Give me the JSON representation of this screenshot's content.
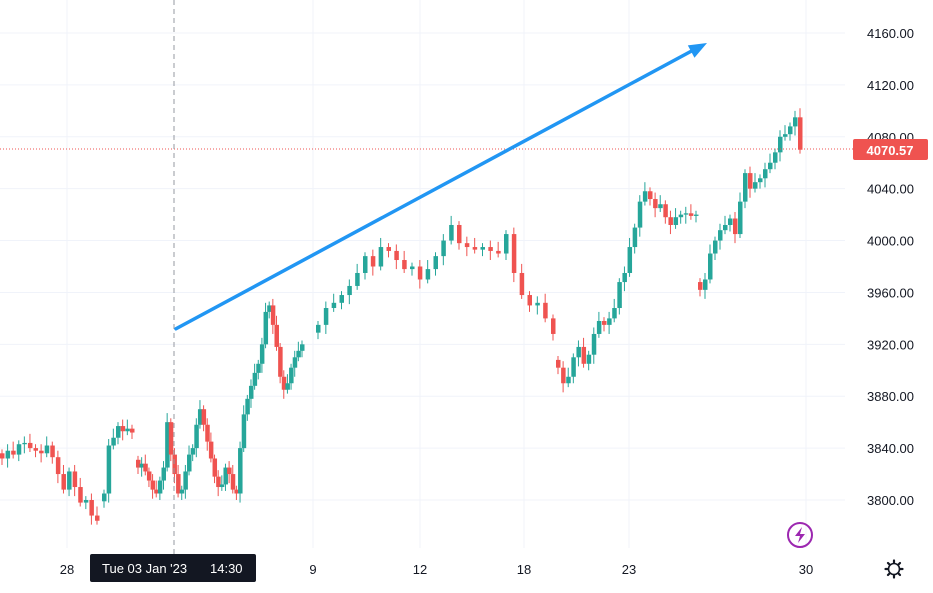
{
  "colors": {
    "up": "#26a69a",
    "down": "#ef5350",
    "trend_arrow": "#2196f3",
    "grid": "#f0f3fa",
    "price_line": "#ef5350",
    "crosshair": "#9598a1",
    "tooltip_bg": "#131722",
    "replay_icon": "#9c27b0"
  },
  "crosshair": {
    "label": "Tue 03 Jan '23",
    "time": "14:30"
  },
  "last_price": {
    "label": "4070.57",
    "value": 4070.57
  },
  "icons": {
    "settings": "gear-icon",
    "replay": "lightning-icon"
  },
  "chart_data": {
    "type": "candlestick",
    "title": "",
    "xlabel": "",
    "ylabel": "",
    "ylim": [
      3760,
      4185
    ],
    "y_ticks": [
      "3800.00",
      "3840.00",
      "3880.00",
      "3920.00",
      "3960.00",
      "4000.00",
      "4040.00",
      "4080.00",
      "4120.00",
      "4160.00"
    ],
    "x_ticks": [
      "28",
      "9",
      "12",
      "18",
      "23",
      "30"
    ],
    "grid": true,
    "trendline": {
      "from": [
        3932
      ],
      "to": [
        4160
      ]
    },
    "segments": [
      {
        "name": "",
        "closes": [
          3832,
          3838,
          3835,
          3843,
          3844,
          3840,
          3838,
          3836,
          3842,
          3833,
          3820,
          3808,
          3822,
          3810,
          3798,
          3800,
          3788,
          3784
        ]
      },
      {
        "name": "",
        "closes": [
          3805,
          3842,
          3848,
          3857,
          3853,
          3855,
          3852
        ]
      },
      {
        "name": "",
        "closes": [
          3825,
          3828,
          3822,
          3815,
          3808,
          3805,
          3815,
          3825,
          3860,
          3835,
          3820,
          3805,
          3808,
          3822,
          3835,
          3840,
          3858,
          3870,
          3858,
          3845,
          3832,
          3818,
          3810,
          3812,
          3825,
          3820,
          3808,
          3805,
          3840,
          3866,
          3878,
          3888,
          3898,
          3905,
          3920,
          3945,
          3950,
          3935,
          3918,
          3895,
          3885,
          3890,
          3902,
          3910,
          3915,
          3920
        ]
      },
      {
        "name": "",
        "closes": [
          3935,
          3948,
          3952,
          3958,
          3965,
          3975,
          3988,
          3980,
          3995,
          3992,
          3985,
          3978,
          3980,
          3970,
          3978,
          3988,
          4000,
          4012,
          3998,
          3995,
          3993,
          3995,
          3992,
          3990,
          4005,
          3975,
          3958,
          3950,
          3952,
          3940,
          3928
        ]
      },
      {
        "name": "",
        "closes": [
          3902,
          3890,
          3895,
          3910,
          3918,
          3905,
          3912,
          3928,
          3938,
          3935,
          3940,
          3948,
          3968,
          3975,
          3995,
          4010,
          4030,
          4038,
          4032,
          4025,
          4028,
          4018,
          4012,
          4018,
          4020,
          4021,
          4019,
          4020
        ]
      },
      {
        "name": "",
        "closes": [
          3962,
          3970,
          3990,
          4000,
          4008,
          4012,
          4017,
          4005,
          4030,
          4052,
          4040,
          4045,
          4048,
          4055,
          4060,
          4068,
          4080,
          4082,
          4088,
          4095,
          4070
        ]
      }
    ]
  }
}
